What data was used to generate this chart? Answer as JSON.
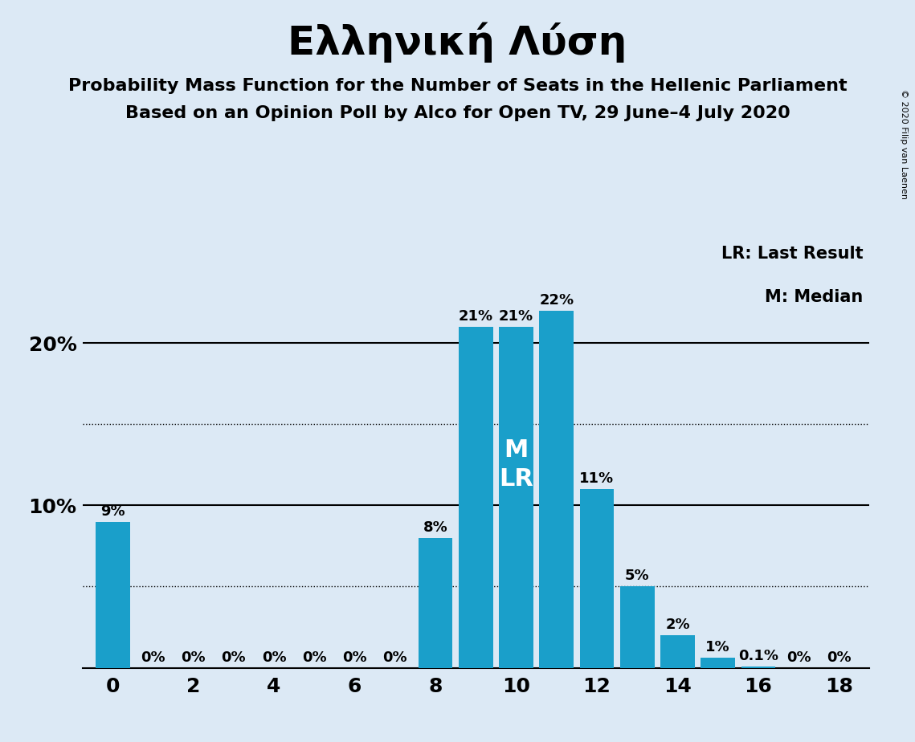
{
  "title": "Ελληνική Λύση",
  "subtitle1": "Probability Mass Function for the Number of Seats in the Hellenic Parliament",
  "subtitle2": "Based on an Opinion Poll by Alco for Open TV, 29 June–4 July 2020",
  "copyright": "© 2020 Filip van Laenen",
  "legend_lr": "LR: Last Result",
  "legend_m": "M: Median",
  "seats": [
    0,
    1,
    2,
    3,
    4,
    5,
    6,
    7,
    8,
    9,
    10,
    11,
    12,
    13,
    14,
    15,
    16,
    17,
    18
  ],
  "probabilities": [
    0.09,
    0.0,
    0.0,
    0.0,
    0.0,
    0.0,
    0.0,
    0.0,
    0.08,
    0.21,
    0.21,
    0.22,
    0.11,
    0.05,
    0.02,
    0.006,
    0.001,
    0.0,
    0.0
  ],
  "bar_color": "#1a9fca",
  "background_color": "#dce9f5",
  "median_seat": 10,
  "last_result_seat": 10,
  "ylim_max": 0.265,
  "solid_lines": [
    0.1,
    0.2
  ],
  "dotted_lines": [
    0.05,
    0.15
  ],
  "yticks": [
    0.1,
    0.2
  ],
  "ytick_labels": [
    "10%",
    "20%"
  ],
  "xticks": [
    0,
    2,
    4,
    6,
    8,
    10,
    12,
    14,
    16,
    18
  ],
  "bar_label_fontsize": 13,
  "title_fontsize": 36,
  "subtitle_fontsize": 16,
  "tick_fontsize": 18,
  "legend_fontsize": 15,
  "ml_label_fontsize": 22,
  "copyright_fontsize": 8
}
